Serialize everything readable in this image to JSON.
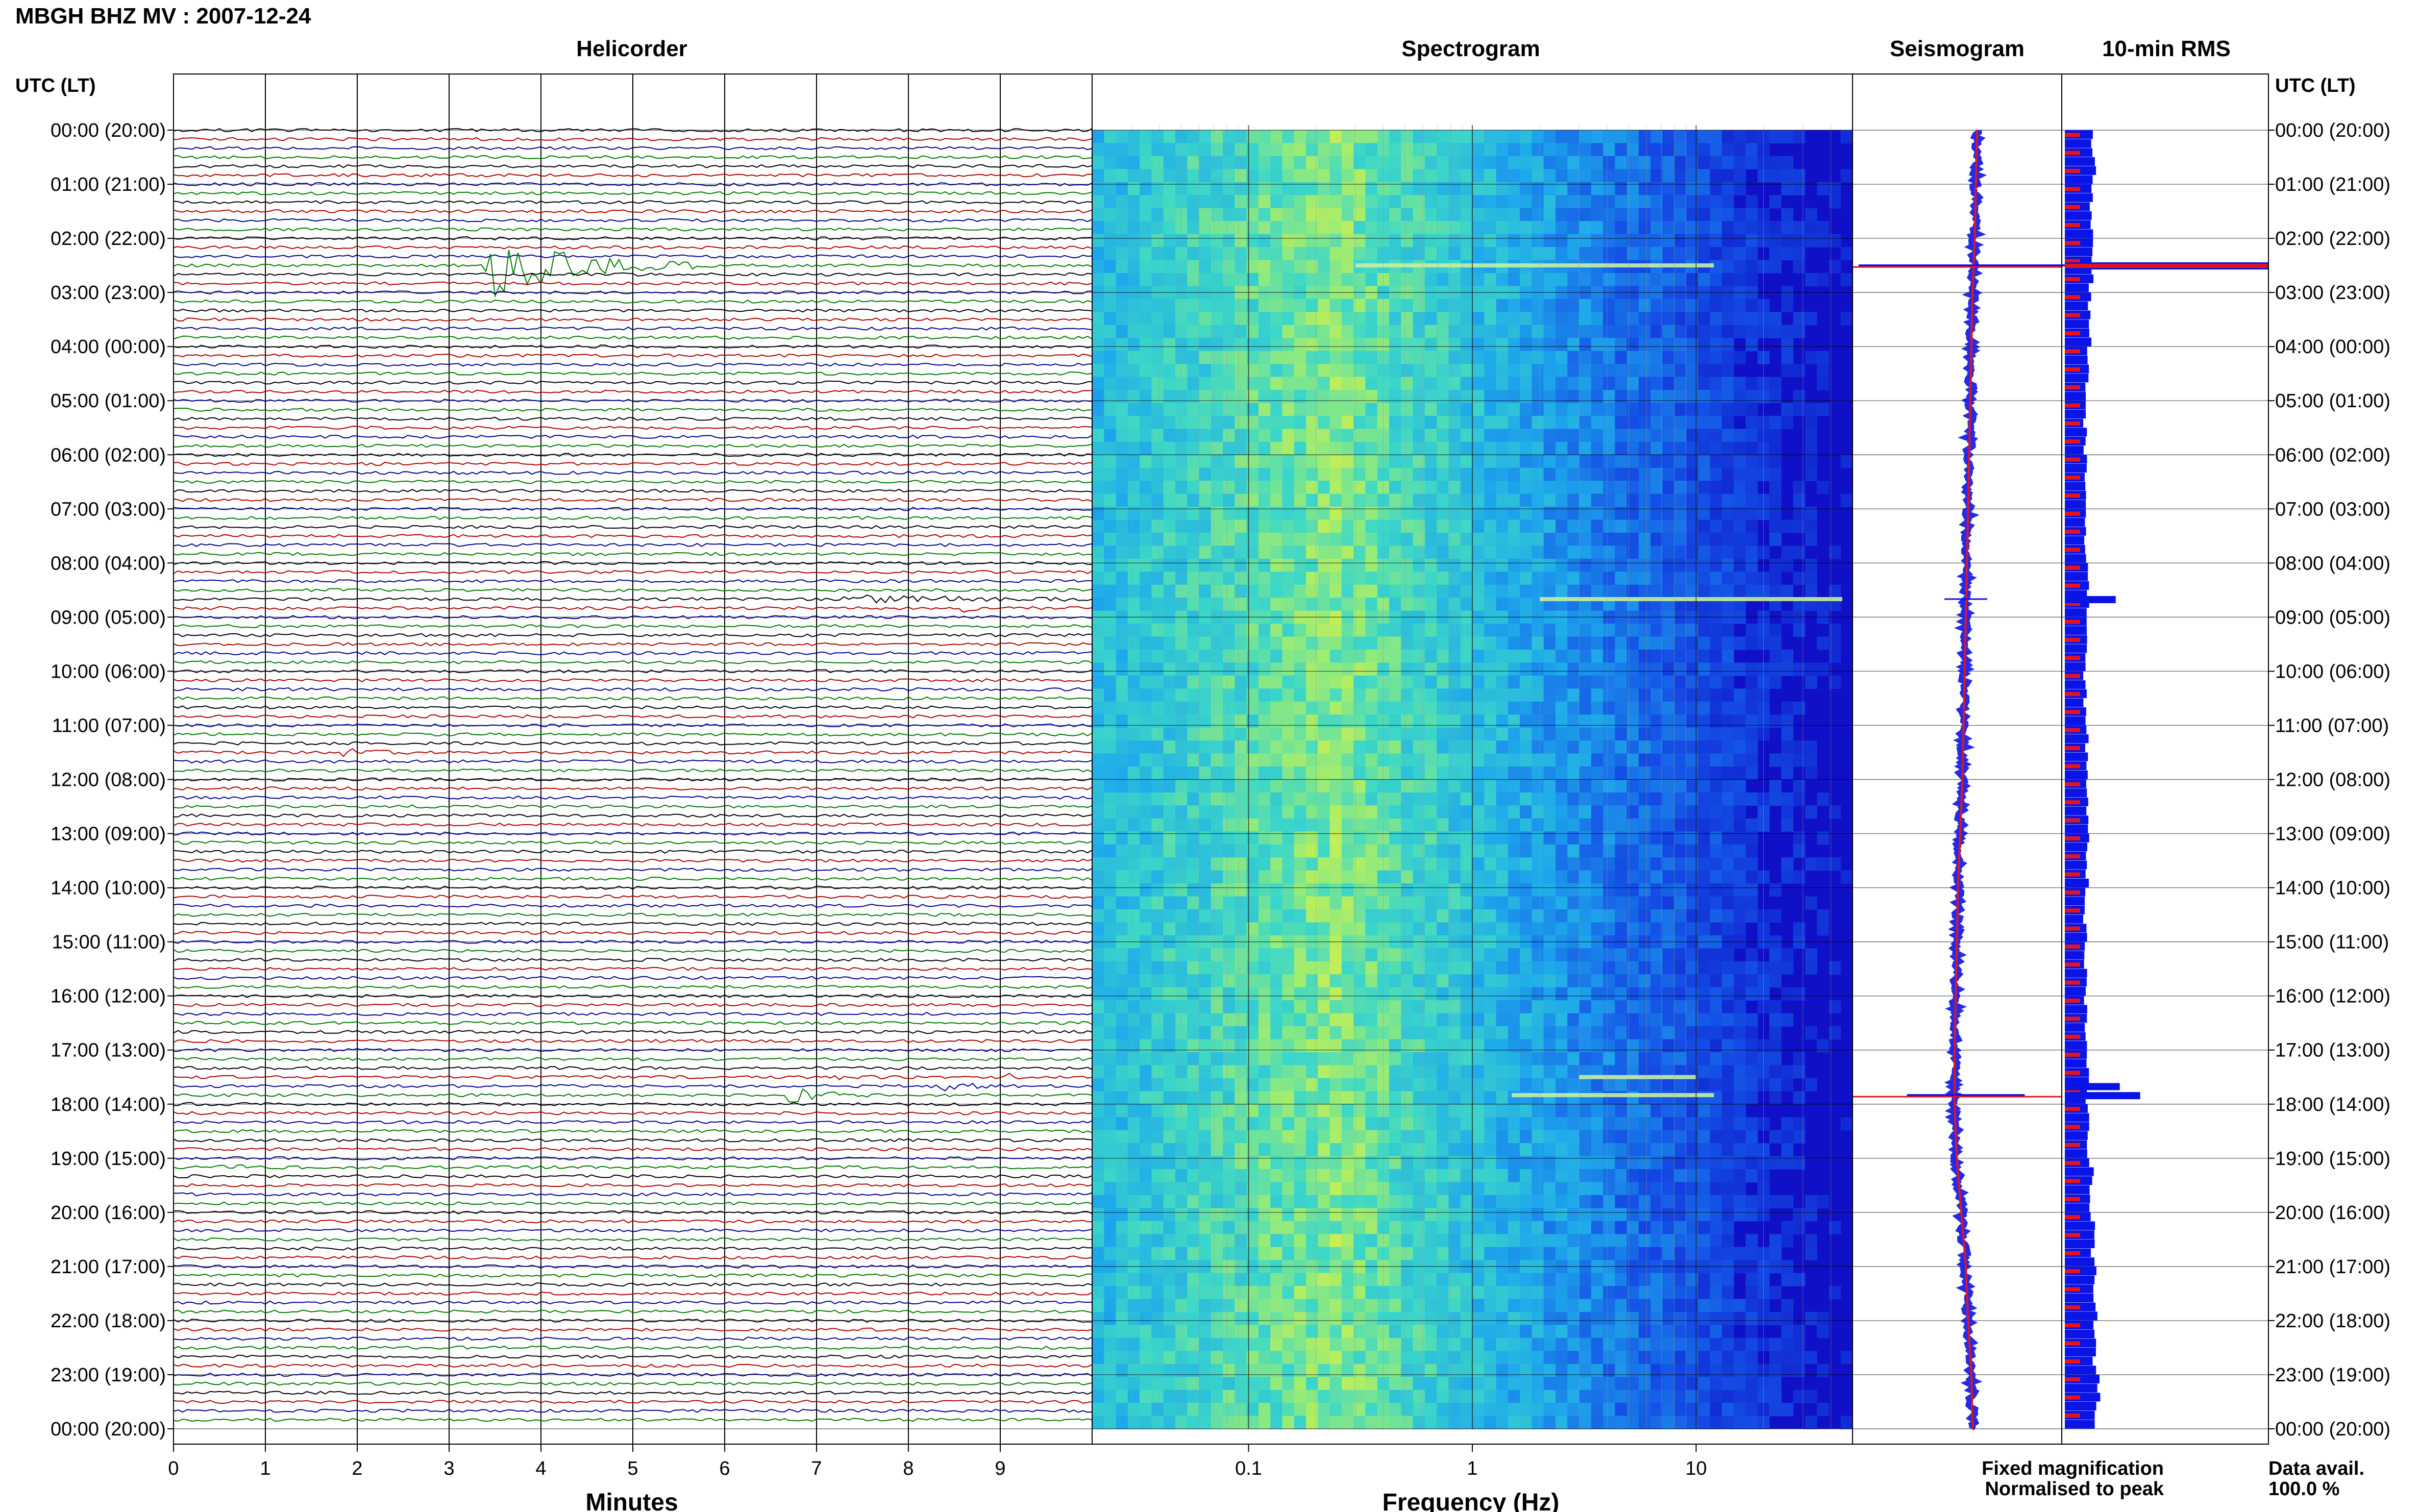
{
  "header": {
    "title": "MBGH BHZ MV : 2007-12-24"
  },
  "panels": {
    "helicorder": "Helicorder",
    "spectrogram": "Spectrogram",
    "seismogram": "Seismogram",
    "rms": "10-min RMS"
  },
  "axes": {
    "time_label_left": "UTC (LT)",
    "time_label_right": "UTC (LT)",
    "minutes_label": "Minutes",
    "frequency_label": "Frequency (Hz)"
  },
  "legend": {
    "fixed": "Fixed magnification",
    "normalised": "Normalised to peak",
    "fixed_color": "#0a14e6",
    "normalised_color": "#e6141a"
  },
  "data_availability": {
    "label": "Data avail.",
    "value": "100.0 %"
  },
  "colors": {
    "trace_cycle": [
      "#000000",
      "#b00000",
      "#000090",
      "#007a00"
    ],
    "spec_low": "#1010c8",
    "spec_high": "#d8f048"
  },
  "chart_data": [
    {
      "type": "line",
      "name": "helicorder",
      "title": "Helicorder",
      "xlabel": "Minutes",
      "xlim": [
        0,
        10
      ],
      "x_ticks": [
        "0",
        "1",
        "2",
        "3",
        "4",
        "5",
        "6",
        "7",
        "8",
        "9"
      ],
      "y_ticks": [
        "00:00 (20:00)",
        "01:00 (21:00)",
        "02:00 (22:00)",
        "03:00 (23:00)",
        "04:00 (00:00)",
        "05:00 (01:00)",
        "06:00 (02:00)",
        "07:00 (03:00)",
        "08:00 (04:00)",
        "09:00 (05:00)",
        "10:00 (06:00)",
        "11:00 (07:00)",
        "12:00 (08:00)",
        "13:00 (09:00)",
        "14:00 (10:00)",
        "15:00 (11:00)",
        "16:00 (12:00)",
        "17:00 (13:00)",
        "18:00 (14:00)",
        "19:00 (15:00)",
        "20:00 (16:00)",
        "21:00 (17:00)",
        "22:00 (18:00)",
        "23:00 (19:00)",
        "00:00 (20:00)"
      ],
      "lines_per_hour": 6,
      "events": [
        {
          "time": "02:30",
          "minute": 3.4,
          "amplitude": 8,
          "duration_min": 2.5
        },
        {
          "time": "08:40",
          "minute": 7.3,
          "amplitude": 0.8,
          "duration_min": 3.5
        },
        {
          "time": "08:50",
          "minute": 1.4,
          "amplitude": 0.6,
          "duration_min": 0.4
        },
        {
          "time": "08:50",
          "minute": 8.6,
          "amplitude": 0.6,
          "duration_min": 0.4
        },
        {
          "time": "11:30",
          "minute": 1.8,
          "amplitude": 0.7,
          "duration_min": 1.0
        },
        {
          "time": "17:30",
          "minute": 7.2,
          "amplitude": 0.6,
          "duration_min": 0.6
        },
        {
          "time": "17:30",
          "minute": 9.1,
          "amplitude": 0.5,
          "duration_min": 0.4
        },
        {
          "time": "17:40",
          "minute": 8.2,
          "amplitude": 1.6,
          "duration_min": 1.0
        },
        {
          "time": "17:50",
          "minute": 6.7,
          "amplitude": 2.2,
          "duration_min": 1.0
        },
        {
          "time": "19:10",
          "minute": 0.5,
          "amplitude": 0.5,
          "duration_min": 0.8
        }
      ]
    },
    {
      "type": "heatmap",
      "name": "spectrogram",
      "title": "Spectrogram",
      "xlabel": "Frequency (Hz)",
      "x_scale": "log",
      "xlim": [
        0.02,
        50
      ],
      "x_ticks": [
        "0.1",
        "1",
        "10"
      ],
      "peak_band_hz": [
        0.15,
        0.4
      ],
      "events": [
        {
          "time": "02:30",
          "fmin": 0.3,
          "fmax": 12
        },
        {
          "time": "08:40",
          "fmin": 2.0,
          "fmax": 45
        },
        {
          "time": "17:30",
          "fmin": 3.0,
          "fmax": 10
        },
        {
          "time": "17:50",
          "fmin": 1.5,
          "fmax": 12
        }
      ]
    },
    {
      "type": "line",
      "name": "seismogram",
      "title": "Seismogram",
      "series": [
        {
          "name": "Fixed magnification",
          "color": "#0a14e6"
        },
        {
          "name": "Normalised to peak",
          "color": "#e6141a"
        }
      ],
      "baseline_offset": [
        0.2,
        0.18,
        0.16,
        0.12,
        0.1,
        0.08,
        0.06,
        0.04,
        0.02,
        0.0,
        -0.02,
        -0.04,
        -0.06,
        -0.1,
        -0.14,
        -0.16,
        -0.18,
        -0.2,
        -0.2,
        -0.16,
        -0.08,
        0.0,
        0.04,
        0.1,
        0.12
      ],
      "spikes": [
        {
          "time": "02:30",
          "size": 1.0
        },
        {
          "time": "08:40",
          "size": 0.2
        },
        {
          "time": "17:50",
          "size": 0.55
        }
      ]
    },
    {
      "type": "bar",
      "name": "rms",
      "title": "10-min RMS",
      "series": [
        {
          "name": "Fixed magnification",
          "color": "#0a14e6"
        },
        {
          "name": "Normalised to peak",
          "color": "#e6141a"
        }
      ],
      "hourly_level": [
        0.14,
        0.13,
        0.13,
        0.12,
        0.11,
        0.1,
        0.1,
        0.1,
        0.11,
        0.1,
        0.1,
        0.11,
        0.11,
        0.11,
        0.1,
        0.1,
        0.1,
        0.11,
        0.12,
        0.13,
        0.14,
        0.15,
        0.15,
        0.16
      ],
      "spikes": [
        {
          "time": "02:30",
          "value": 1.0
        },
        {
          "time": "08:40",
          "value": 0.25
        },
        {
          "time": "17:40",
          "value": 0.27
        },
        {
          "time": "17:50",
          "value": 0.37
        }
      ]
    }
  ]
}
